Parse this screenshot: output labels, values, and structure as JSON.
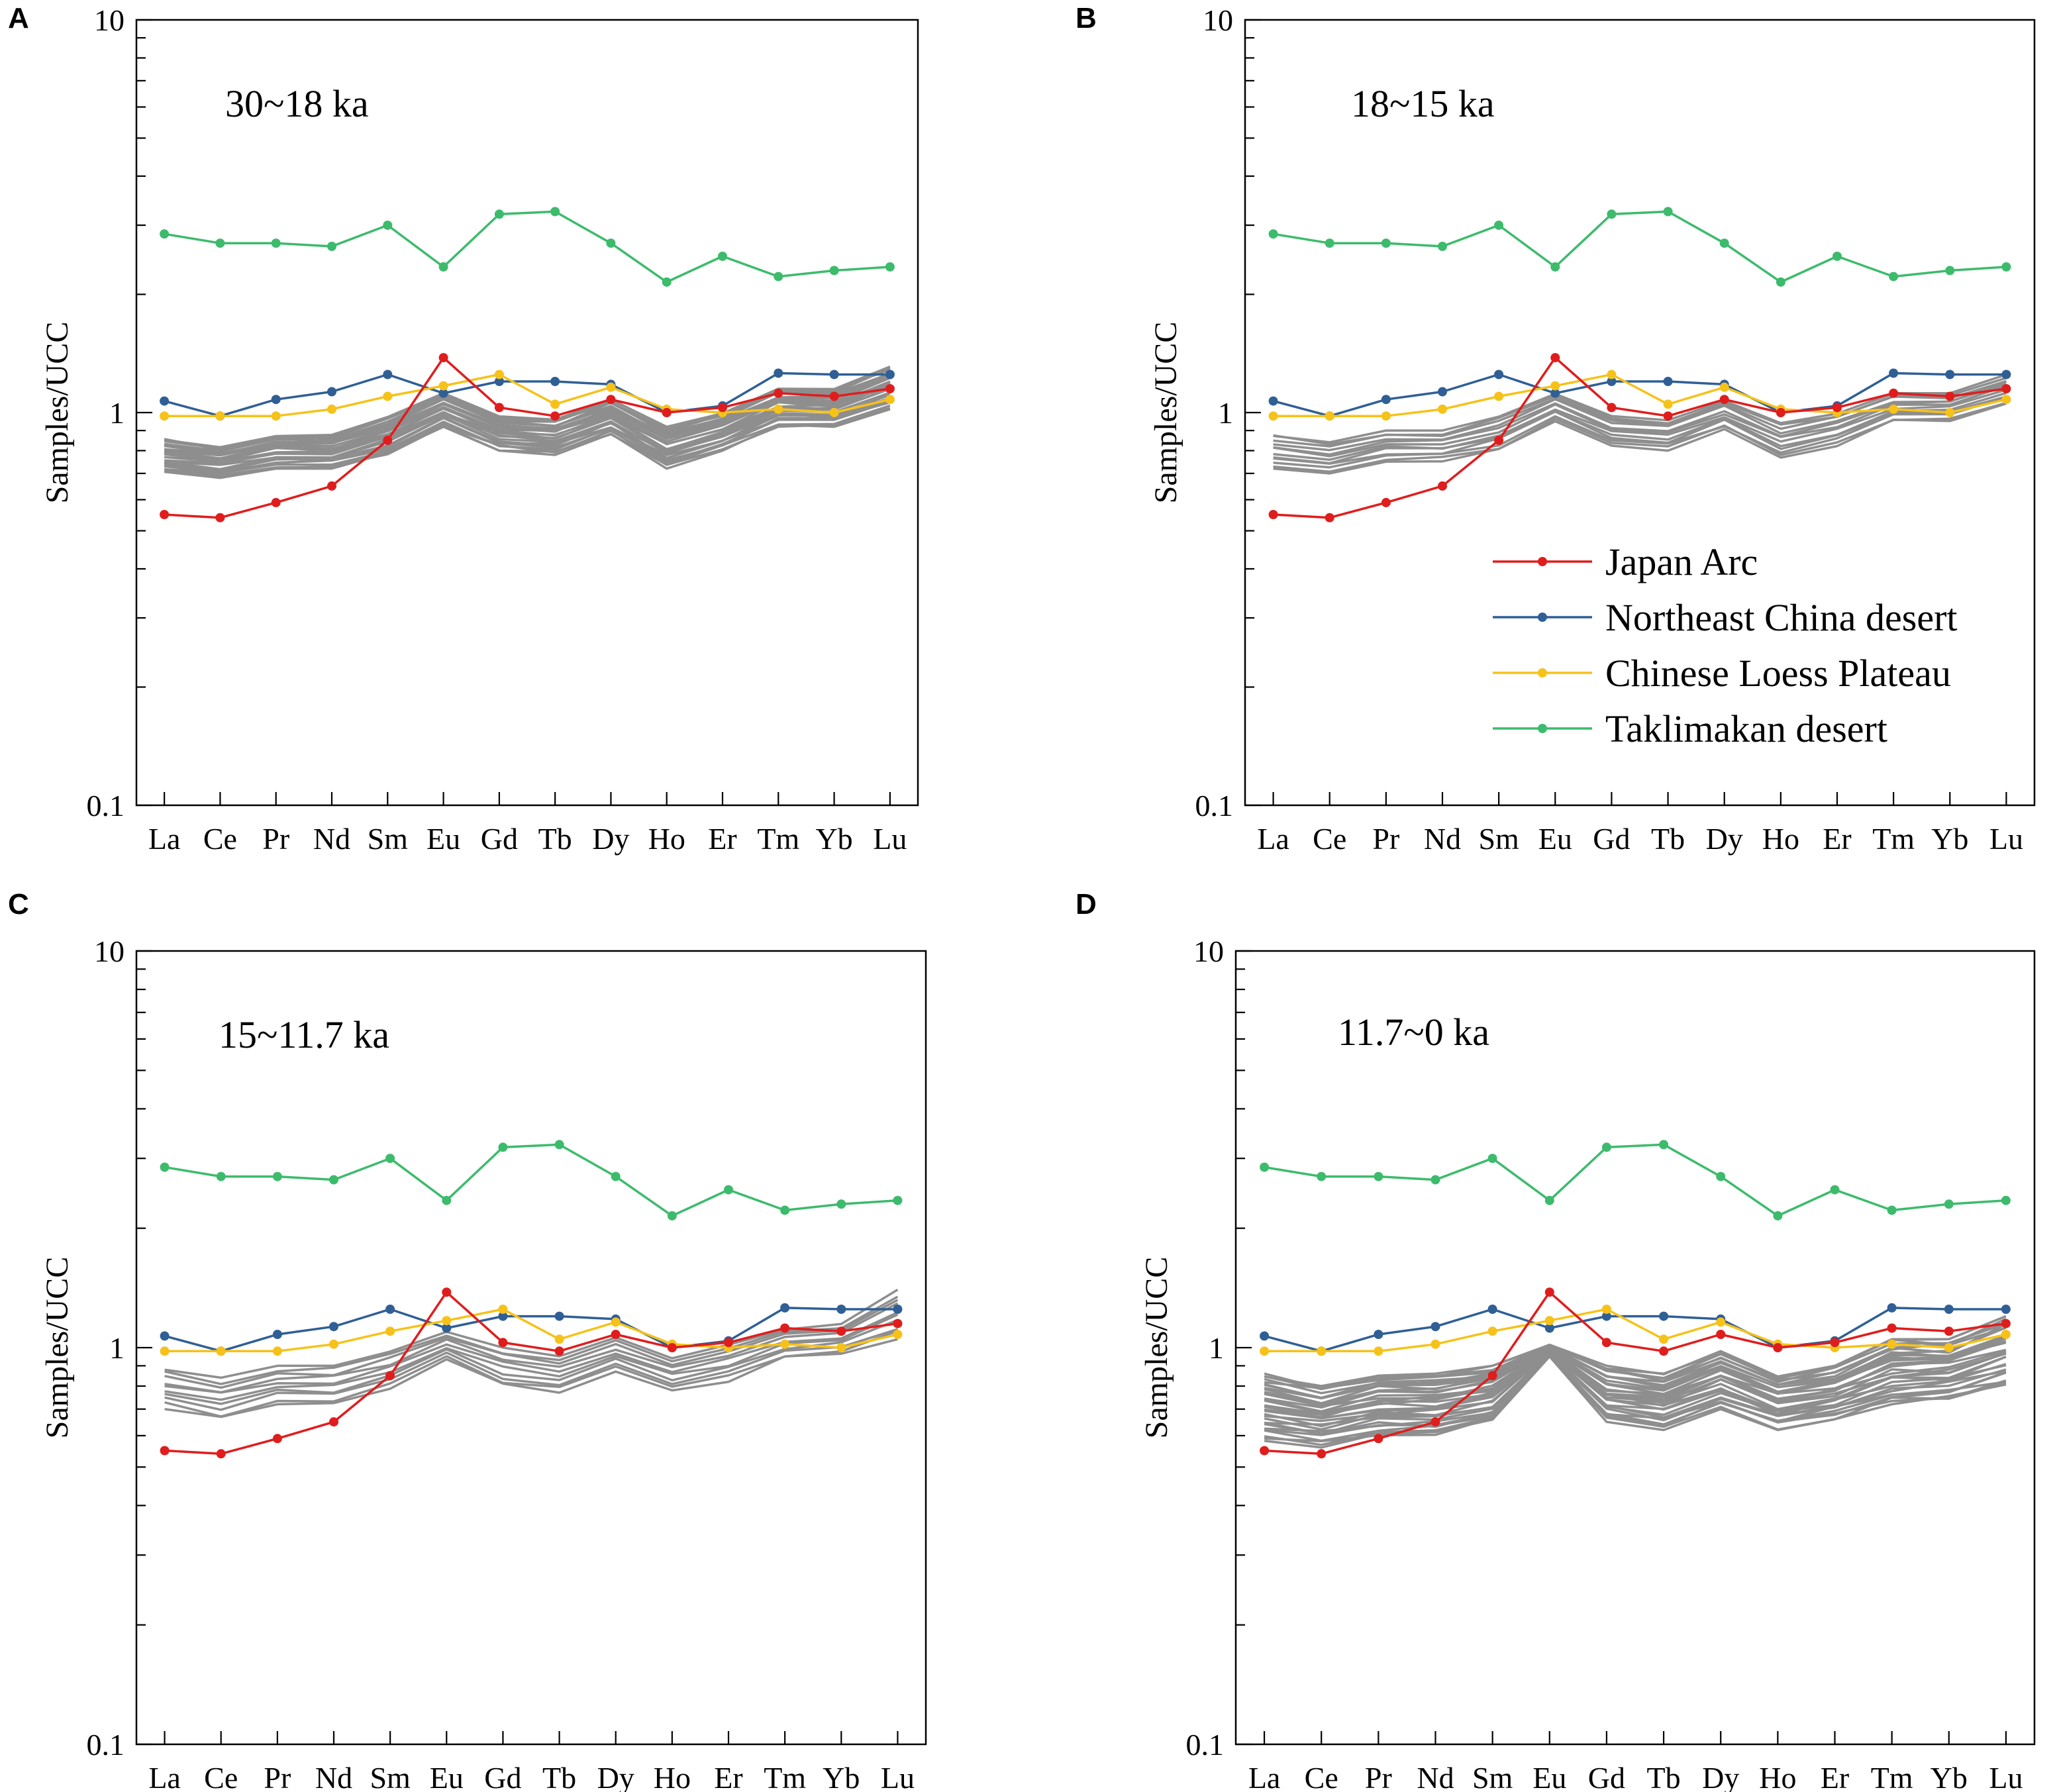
{
  "figure": {
    "ylabel": "Samples/UCC",
    "y_ticks": [
      "0.1",
      "1",
      "10"
    ],
    "ylim": [
      0.1,
      10
    ],
    "yscale": "log",
    "colors": {
      "Japan Arc": "#e01d1d",
      "Northeast China desert": "#2f5f95",
      "Chinese Loess Plateau": "#f6c21a",
      "Taklimakan desert": "#3dbb6c",
      "samples": "#8e8e8e",
      "axis": "#000000"
    }
  },
  "legend": [
    {
      "name": "Japan Arc",
      "color": "#e01d1d"
    },
    {
      "name": "Northeast China desert",
      "color": "#2f5f95"
    },
    {
      "name": "Chinese Loess Plateau",
      "color": "#f6c21a"
    },
    {
      "name": "Taklimakan desert",
      "color": "#3dbb6c"
    }
  ],
  "chart_data": [
    {
      "type": "line",
      "panel": "A",
      "title": "30~18 ka",
      "categories": [
        "La",
        "Ce",
        "Pr",
        "Nd",
        "Sm",
        "Eu",
        "Gd",
        "Tb",
        "Dy",
        "Ho",
        "Er",
        "Tm",
        "Yb",
        "Lu"
      ],
      "ylabel": "Samples/UCC",
      "ylim": [
        0.1,
        10
      ],
      "yscale": "log",
      "series": [
        {
          "name": "Japan Arc",
          "values": [
            0.55,
            0.54,
            0.59,
            0.65,
            0.85,
            1.38,
            1.03,
            0.98,
            1.08,
            1.0,
            1.03,
            1.12,
            1.1,
            1.15
          ]
        },
        {
          "name": "Northeast China desert",
          "values": [
            1.07,
            0.98,
            1.08,
            1.13,
            1.25,
            1.12,
            1.2,
            1.2,
            1.18,
            1.0,
            1.04,
            1.26,
            1.25,
            1.25
          ]
        },
        {
          "name": "Chinese Loess Plateau",
          "values": [
            0.98,
            0.98,
            0.98,
            1.02,
            1.1,
            1.17,
            1.25,
            1.05,
            1.16,
            1.02,
            1.0,
            1.02,
            1.0,
            1.08
          ]
        },
        {
          "name": "Taklimakan desert",
          "values": [
            2.85,
            2.7,
            2.7,
            2.65,
            3.0,
            2.35,
            3.2,
            3.25,
            2.7,
            2.15,
            2.5,
            2.22,
            2.3,
            2.35
          ]
        }
      ],
      "sample_band": {
        "count": 26,
        "lower": [
          0.7,
          0.68,
          0.72,
          0.72,
          0.78,
          0.92,
          0.8,
          0.78,
          0.88,
          0.72,
          0.8,
          0.92,
          0.92,
          1.02
        ],
        "upper": [
          0.86,
          0.82,
          0.88,
          0.88,
          0.98,
          1.12,
          0.98,
          0.96,
          1.08,
          0.92,
          1.0,
          1.15,
          1.15,
          1.32
        ]
      }
    },
    {
      "type": "line",
      "panel": "B",
      "title": "18~15 ka",
      "categories": [
        "La",
        "Ce",
        "Pr",
        "Nd",
        "Sm",
        "Eu",
        "Gd",
        "Tb",
        "Dy",
        "Ho",
        "Er",
        "Tm",
        "Yb",
        "Lu"
      ],
      "ylabel": "Samples/UCC",
      "ylim": [
        0.1,
        10
      ],
      "yscale": "log",
      "series": [
        {
          "name": "Japan Arc",
          "values": [
            0.55,
            0.54,
            0.59,
            0.65,
            0.85,
            1.38,
            1.03,
            0.98,
            1.08,
            1.0,
            1.03,
            1.12,
            1.1,
            1.15
          ]
        },
        {
          "name": "Northeast China desert",
          "values": [
            1.07,
            0.98,
            1.08,
            1.13,
            1.25,
            1.12,
            1.2,
            1.2,
            1.18,
            1.0,
            1.04,
            1.26,
            1.25,
            1.25
          ]
        },
        {
          "name": "Chinese Loess Plateau",
          "values": [
            0.98,
            0.98,
            0.98,
            1.02,
            1.1,
            1.17,
            1.25,
            1.05,
            1.16,
            1.02,
            1.0,
            1.02,
            1.0,
            1.08
          ]
        },
        {
          "name": "Taklimakan desert",
          "values": [
            2.85,
            2.7,
            2.7,
            2.65,
            3.0,
            2.35,
            3.2,
            3.25,
            2.7,
            2.15,
            2.5,
            2.22,
            2.3,
            2.35
          ]
        }
      ],
      "sample_band": {
        "count": 12,
        "lower": [
          0.72,
          0.7,
          0.75,
          0.75,
          0.8,
          0.95,
          0.82,
          0.8,
          0.9,
          0.76,
          0.82,
          0.95,
          0.95,
          1.05
        ],
        "upper": [
          0.88,
          0.84,
          0.9,
          0.9,
          0.98,
          1.12,
          0.98,
          0.96,
          1.08,
          0.94,
          1.0,
          1.12,
          1.12,
          1.25
        ]
      }
    },
    {
      "type": "line",
      "panel": "C",
      "title": "15~11.7 ka",
      "categories": [
        "La",
        "Ce",
        "Pr",
        "Nd",
        "Sm",
        "Eu",
        "Gd",
        "Tb",
        "Dy",
        "Ho",
        "Er",
        "Tm",
        "Yb",
        "Lu"
      ],
      "ylabel": "Samples/UCC",
      "ylim": [
        0.1,
        10
      ],
      "yscale": "log",
      "series": [
        {
          "name": "Japan Arc",
          "values": [
            0.55,
            0.54,
            0.59,
            0.65,
            0.85,
            1.38,
            1.03,
            0.98,
            1.08,
            1.0,
            1.03,
            1.12,
            1.1,
            1.15
          ]
        },
        {
          "name": "Northeast China desert",
          "values": [
            1.07,
            0.98,
            1.08,
            1.13,
            1.25,
            1.12,
            1.2,
            1.2,
            1.18,
            1.0,
            1.04,
            1.26,
            1.25,
            1.25
          ]
        },
        {
          "name": "Chinese Loess Plateau",
          "values": [
            0.98,
            0.98,
            0.98,
            1.02,
            1.1,
            1.17,
            1.25,
            1.05,
            1.16,
            1.02,
            1.0,
            1.02,
            1.0,
            1.08
          ]
        },
        {
          "name": "Taklimakan desert",
          "values": [
            2.85,
            2.7,
            2.7,
            2.65,
            3.0,
            2.35,
            3.2,
            3.25,
            2.7,
            2.15,
            2.5,
            2.22,
            2.3,
            2.35
          ]
        }
      ],
      "sample_band": {
        "count": 10,
        "lower": [
          0.7,
          0.66,
          0.72,
          0.72,
          0.78,
          0.93,
          0.8,
          0.77,
          0.87,
          0.78,
          0.82,
          0.94,
          0.96,
          1.05
        ],
        "upper": [
          0.88,
          0.84,
          0.9,
          0.9,
          0.98,
          1.1,
          1.0,
          0.96,
          1.06,
          0.94,
          1.02,
          1.12,
          1.15,
          1.4
        ]
      }
    },
    {
      "type": "line",
      "panel": "D",
      "title": "11.7~0 ka",
      "categories": [
        "La",
        "Ce",
        "Pr",
        "Nd",
        "Sm",
        "Eu",
        "Gd",
        "Tb",
        "Dy",
        "Ho",
        "Er",
        "Tm",
        "Yb",
        "Lu"
      ],
      "ylabel": "Samples/UCC",
      "ylim": [
        0.1,
        10
      ],
      "yscale": "log",
      "series": [
        {
          "name": "Japan Arc",
          "values": [
            0.55,
            0.54,
            0.59,
            0.65,
            0.85,
            1.38,
            1.03,
            0.98,
            1.08,
            1.0,
            1.03,
            1.12,
            1.1,
            1.15
          ]
        },
        {
          "name": "Northeast China desert",
          "values": [
            1.07,
            0.98,
            1.08,
            1.13,
            1.25,
            1.12,
            1.2,
            1.2,
            1.18,
            1.0,
            1.04,
            1.26,
            1.25,
            1.25
          ]
        },
        {
          "name": "Chinese Loess Plateau",
          "values": [
            0.98,
            0.98,
            0.98,
            1.02,
            1.1,
            1.17,
            1.25,
            1.05,
            1.16,
            1.02,
            1.0,
            1.02,
            1.0,
            1.08
          ]
        },
        {
          "name": "Taklimakan desert",
          "values": [
            2.85,
            2.7,
            2.7,
            2.65,
            3.0,
            2.35,
            3.2,
            3.25,
            2.7,
            2.15,
            2.5,
            2.22,
            2.3,
            2.35
          ]
        }
      ],
      "sample_band": {
        "count": 32,
        "lower": [
          0.58,
          0.56,
          0.6,
          0.6,
          0.65,
          0.95,
          0.65,
          0.62,
          0.7,
          0.62,
          0.66,
          0.72,
          0.74,
          0.8
        ],
        "upper": [
          0.86,
          0.8,
          0.85,
          0.86,
          0.9,
          1.02,
          0.9,
          0.86,
          0.98,
          0.85,
          0.9,
          1.05,
          1.05,
          1.2
        ]
      }
    }
  ]
}
